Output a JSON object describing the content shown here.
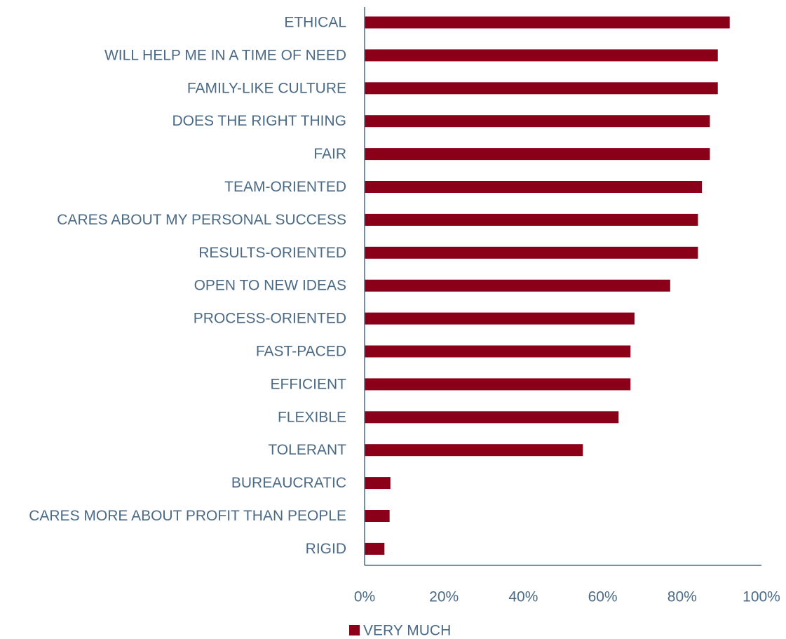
{
  "colors": {
    "bar": "#8b0018",
    "axis": "#4a6a86",
    "text": "#4a6a86"
  },
  "chart_data": {
    "type": "bar",
    "orientation": "horizontal",
    "categories": [
      "ETHICAL",
      "WILL HELP ME IN A TIME OF NEED",
      "FAMILY-LIKE CULTURE",
      "DOES THE RIGHT THING",
      "FAIR",
      "TEAM-ORIENTED",
      "CARES ABOUT MY PERSONAL SUCCESS",
      "RESULTS-ORIENTED",
      "OPEN TO NEW IDEAS",
      "PROCESS-ORIENTED",
      "FAST-PACED",
      "EFFICIENT",
      "FLEXIBLE",
      "TOLERANT",
      "BUREAUCRATIC",
      "CARES MORE ABOUT PROFIT THAN PEOPLE",
      "RIGID"
    ],
    "series": [
      {
        "name": "VERY MUCH",
        "values": [
          92,
          89,
          89,
          87,
          87,
          85,
          84,
          84,
          77,
          68,
          67,
          67,
          64,
          55,
          6.5,
          6.3,
          5
        ]
      }
    ],
    "xlim": [
      0,
      100
    ],
    "xticks": [
      "0%",
      "20%",
      "40%",
      "60%",
      "80%",
      "100%"
    ],
    "xtick_values": [
      0,
      20,
      40,
      60,
      80,
      100
    ],
    "grid": false,
    "legend_position": "bottom"
  }
}
